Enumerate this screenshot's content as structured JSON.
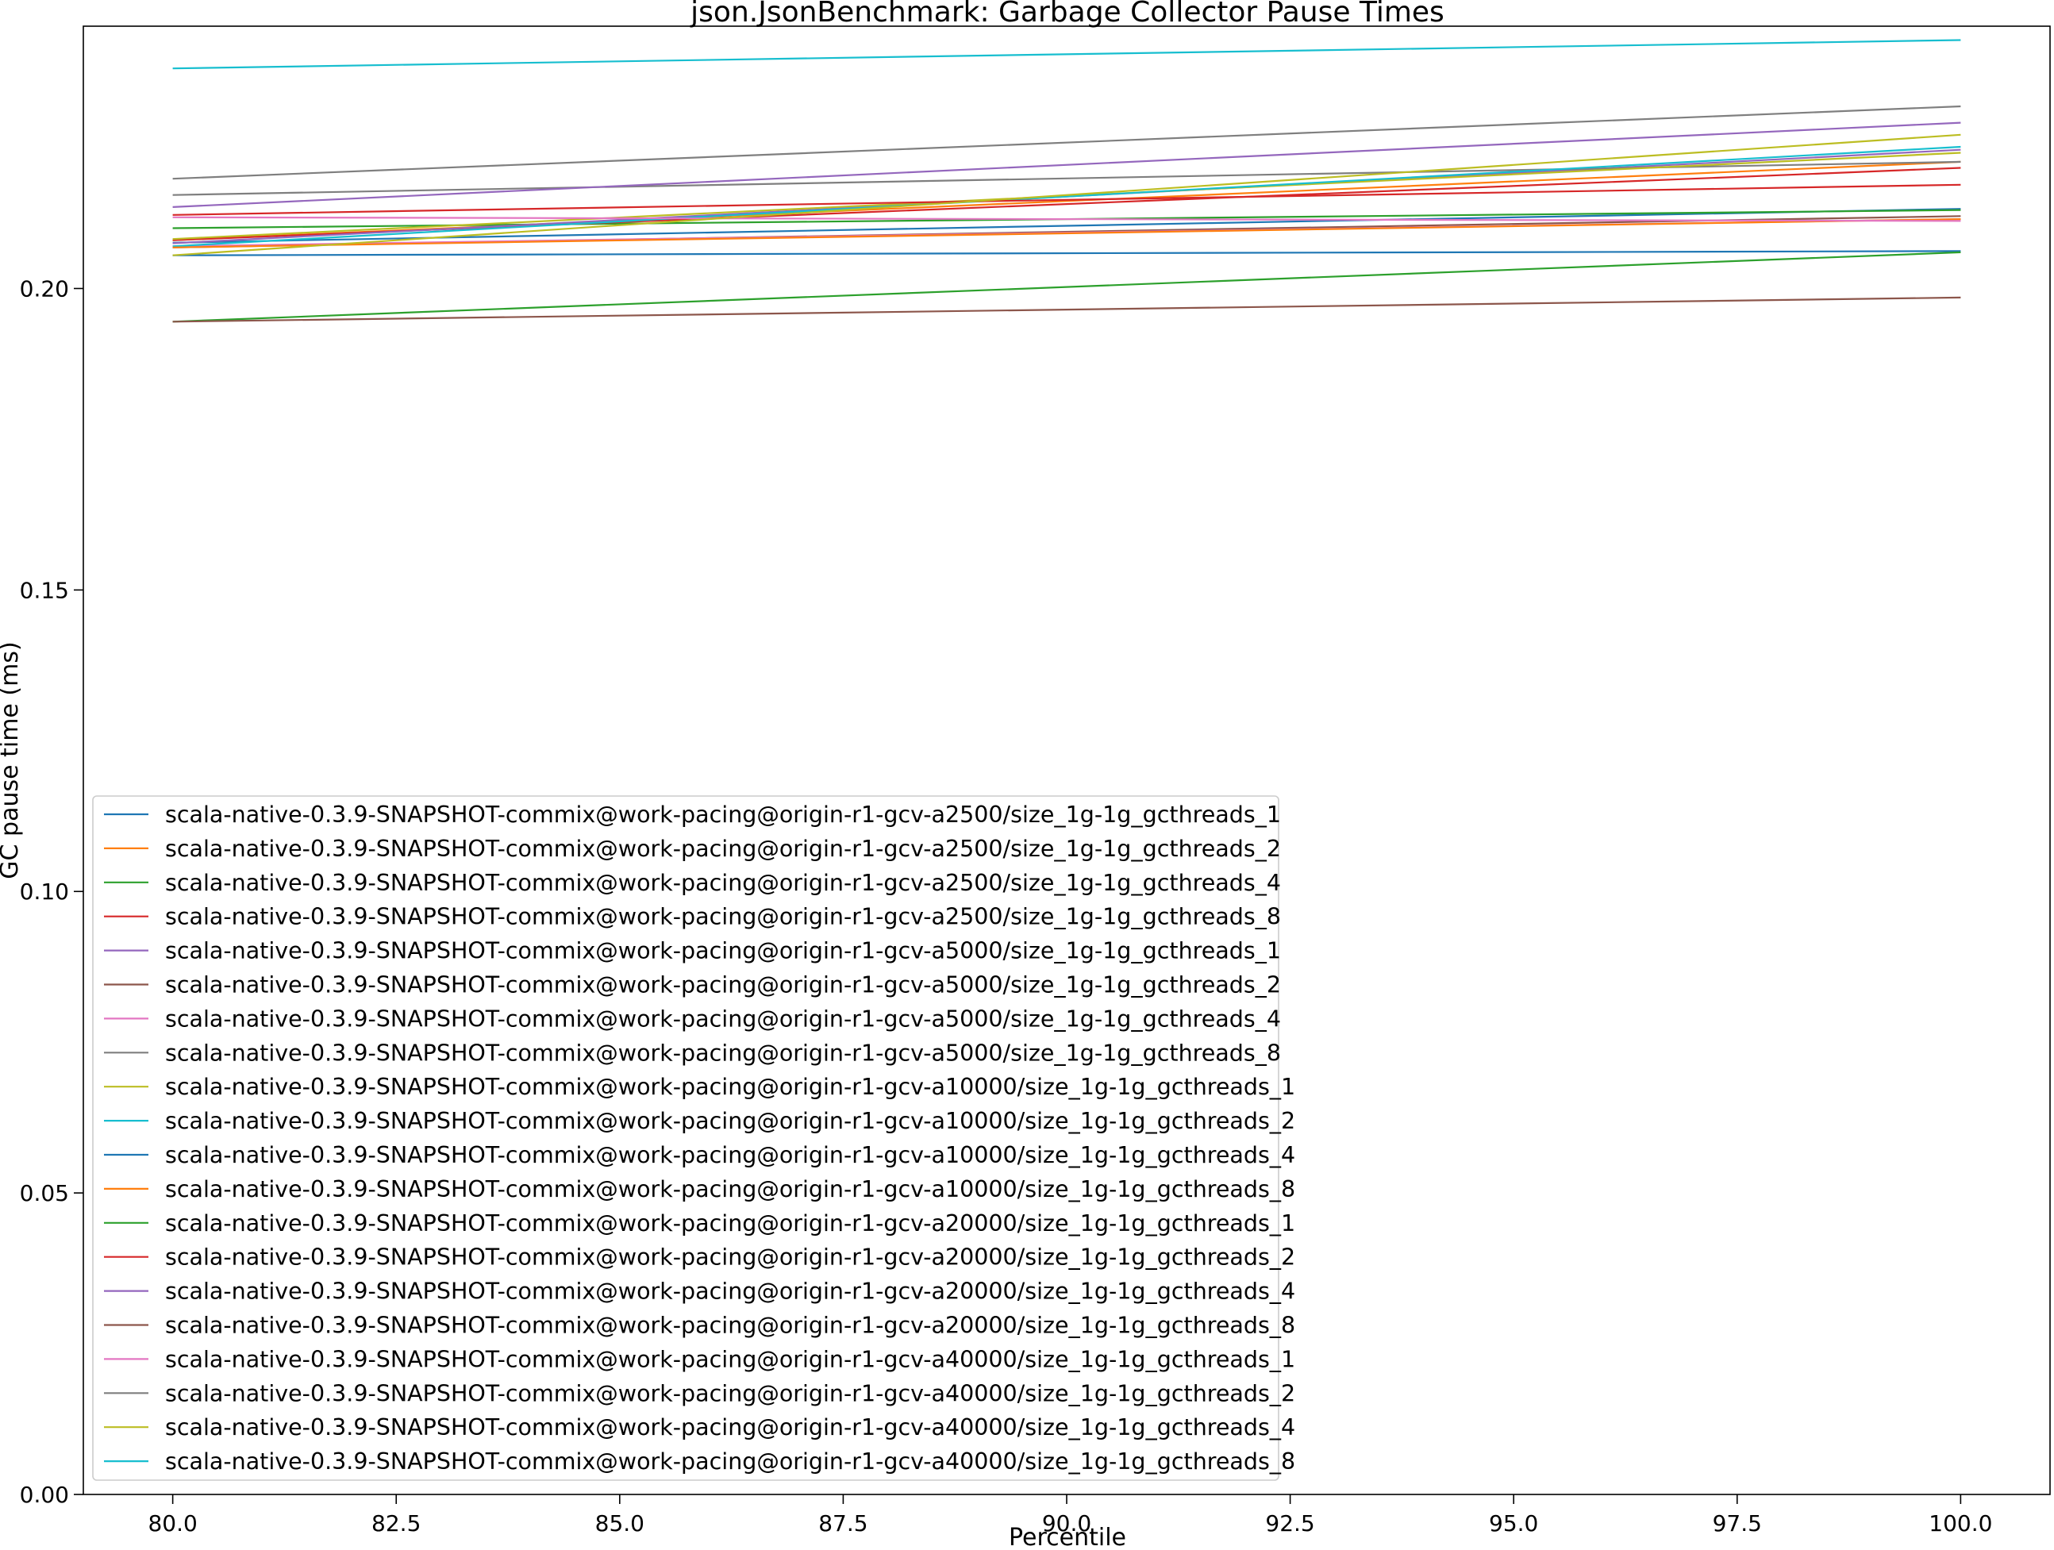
{
  "chart_data": {
    "type": "line",
    "title": "json.JsonBenchmark: Garbage Collector Pause Times",
    "xlabel": "Percentile",
    "ylabel": "GC pause time (ms)",
    "xlim": [
      79,
      101
    ],
    "ylim": [
      0.0,
      0.2435
    ],
    "x": [
      80,
      100
    ],
    "xticks": [
      80.0,
      82.5,
      85.0,
      87.5,
      90.0,
      92.5,
      95.0,
      97.5,
      100.0
    ],
    "xtick_labels": [
      "80.0",
      "82.5",
      "85.0",
      "87.5",
      "90.0",
      "92.5",
      "95.0",
      "97.5",
      "100.0"
    ],
    "yticks": [
      0.0,
      0.05,
      0.1,
      0.15,
      0.2
    ],
    "ytick_labels": [
      "0.00",
      "0.05",
      "0.10",
      "0.15",
      "0.20"
    ],
    "grid": false,
    "legend_position": "lower-left",
    "series": [
      {
        "name": "scala-native-0.3.9-SNAPSHOT-commix@work-pacing@origin-r1-gcv-a2500/size_1g-1g_gcthreads_1",
        "color": "#1f77b4",
        "values": [
          0.2076,
          0.2132
        ]
      },
      {
        "name": "scala-native-0.3.9-SNAPSHOT-commix@work-pacing@origin-r1-gcv-a2500/size_1g-1g_gcthreads_2",
        "color": "#ff7f0e",
        "values": [
          0.208,
          0.221
        ]
      },
      {
        "name": "scala-native-0.3.9-SNAPSHOT-commix@work-pacing@origin-r1-gcv-a2500/size_1g-1g_gcthreads_4",
        "color": "#2ca02c",
        "values": [
          0.21,
          0.213
        ]
      },
      {
        "name": "scala-native-0.3.9-SNAPSHOT-commix@work-pacing@origin-r1-gcv-a2500/size_1g-1g_gcthreads_8",
        "color": "#d62728",
        "values": [
          0.208,
          0.22
        ]
      },
      {
        "name": "scala-native-0.3.9-SNAPSHOT-commix@work-pacing@origin-r1-gcv-a5000/size_1g-1g_gcthreads_1",
        "color": "#9467bd",
        "values": [
          0.2075,
          0.223
        ]
      },
      {
        "name": "scala-native-0.3.9-SNAPSHOT-commix@work-pacing@origin-r1-gcv-a5000/size_1g-1g_gcthreads_2",
        "color": "#8c564b",
        "values": [
          0.2068,
          0.212
        ]
      },
      {
        "name": "scala-native-0.3.9-SNAPSHOT-commix@work-pacing@origin-r1-gcv-a5000/size_1g-1g_gcthreads_4",
        "color": "#e377c2",
        "values": [
          0.207,
          0.2115
        ]
      },
      {
        "name": "scala-native-0.3.9-SNAPSHOT-commix@work-pacing@origin-r1-gcv-a5000/size_1g-1g_gcthreads_8",
        "color": "#7f7f7f",
        "values": [
          0.2155,
          0.221
        ]
      },
      {
        "name": "scala-native-0.3.9-SNAPSHOT-commix@work-pacing@origin-r1-gcv-a10000/size_1g-1g_gcthreads_1",
        "color": "#bcbd22",
        "values": [
          0.2082,
          0.2225
        ]
      },
      {
        "name": "scala-native-0.3.9-SNAPSHOT-commix@work-pacing@origin-r1-gcv-a10000/size_1g-1g_gcthreads_2",
        "color": "#17becf",
        "values": [
          0.207,
          0.2235
        ]
      },
      {
        "name": "scala-native-0.3.9-SNAPSHOT-commix@work-pacing@origin-r1-gcv-a10000/size_1g-1g_gcthreads_4",
        "color": "#1f77b4",
        "values": [
          0.2055,
          0.2062
        ]
      },
      {
        "name": "scala-native-0.3.9-SNAPSHOT-commix@work-pacing@origin-r1-gcv-a10000/size_1g-1g_gcthreads_8",
        "color": "#ff7f0e",
        "values": [
          0.2068,
          0.2115
        ]
      },
      {
        "name": "scala-native-0.3.9-SNAPSHOT-commix@work-pacing@origin-r1-gcv-a20000/size_1g-1g_gcthreads_1",
        "color": "#2ca02c",
        "values": [
          0.1945,
          0.206
        ]
      },
      {
        "name": "scala-native-0.3.9-SNAPSHOT-commix@work-pacing@origin-r1-gcv-a20000/size_1g-1g_gcthreads_2",
        "color": "#d62728",
        "values": [
          0.2122,
          0.2172
        ]
      },
      {
        "name": "scala-native-0.3.9-SNAPSHOT-commix@work-pacing@origin-r1-gcv-a20000/size_1g-1g_gcthreads_4",
        "color": "#9467bd",
        "values": [
          0.2135,
          0.2275
        ]
      },
      {
        "name": "scala-native-0.3.9-SNAPSHOT-commix@work-pacing@origin-r1-gcv-a20000/size_1g-1g_gcthreads_8",
        "color": "#8c564b",
        "values": [
          0.1945,
          0.1985
        ]
      },
      {
        "name": "scala-native-0.3.9-SNAPSHOT-commix@work-pacing@origin-r1-gcv-a40000/size_1g-1g_gcthreads_1",
        "color": "#e377c2",
        "values": [
          0.2118,
          0.2112
        ]
      },
      {
        "name": "scala-native-0.3.9-SNAPSHOT-commix@work-pacing@origin-r1-gcv-a40000/size_1g-1g_gcthreads_2",
        "color": "#7f7f7f",
        "values": [
          0.2182,
          0.2302
        ]
      },
      {
        "name": "scala-native-0.3.9-SNAPSHOT-commix@work-pacing@origin-r1-gcv-a40000/size_1g-1g_gcthreads_4",
        "color": "#bcbd22",
        "values": [
          0.2055,
          0.2255
        ]
      },
      {
        "name": "scala-native-0.3.9-SNAPSHOT-commix@work-pacing@origin-r1-gcv-a40000/size_1g-1g_gcthreads_8",
        "color": "#17becf",
        "values": [
          0.2365,
          0.2412
        ]
      }
    ]
  }
}
